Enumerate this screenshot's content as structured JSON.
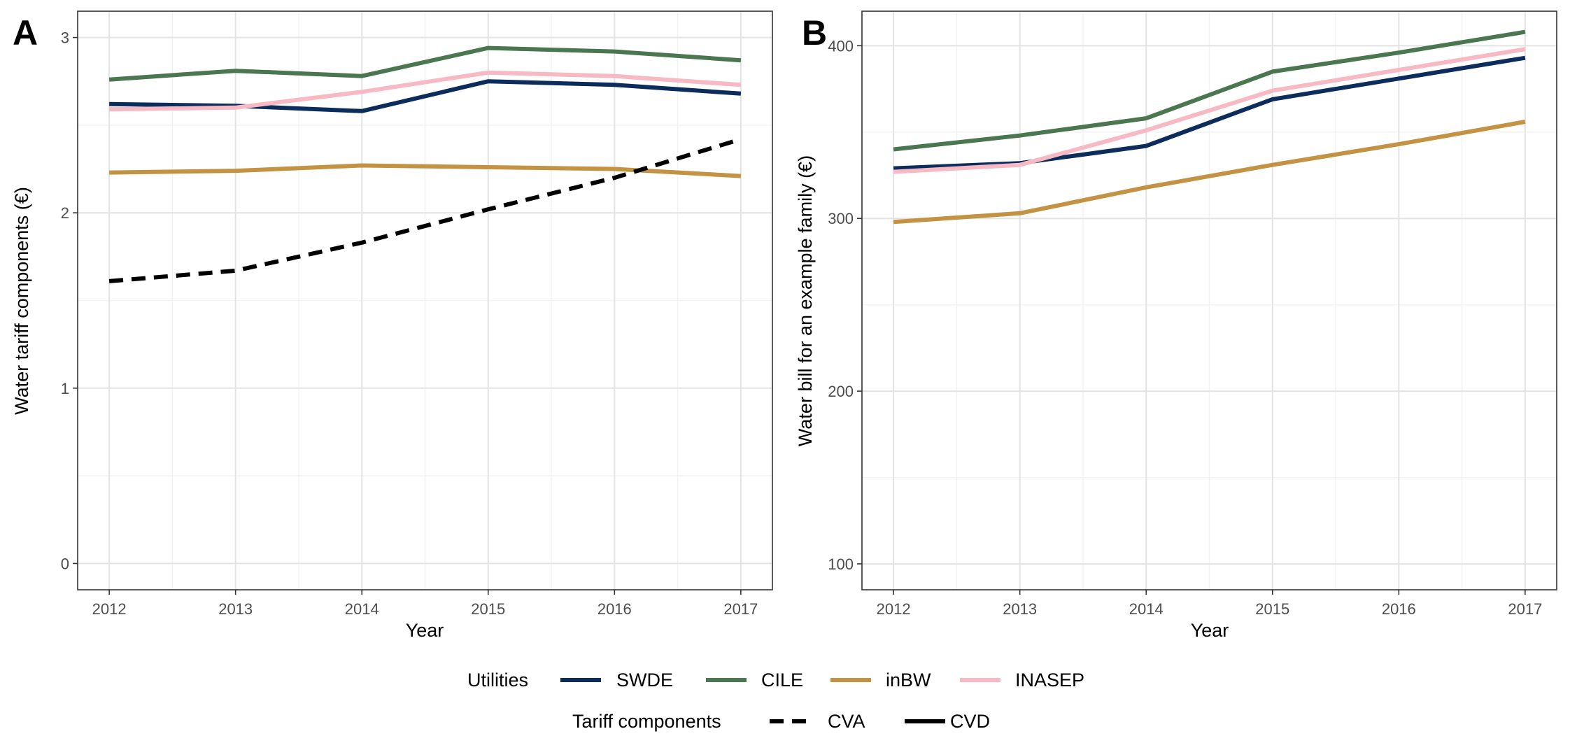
{
  "colors": {
    "SWDE": "#0c2d5c",
    "CILE": "#4a7650",
    "inBW": "#c39343",
    "INASEP": "#f7b9c4",
    "tariff": "#000000",
    "grid_major": "#e3e3e3",
    "grid_minor": "#f2f2f2",
    "panel_border": "#333333"
  },
  "legend": {
    "utilities_title": "Utilities",
    "utilities": [
      {
        "label": "SWDE",
        "color_key": "SWDE"
      },
      {
        "label": "CILE",
        "color_key": "CILE"
      },
      {
        "label": "inBW",
        "color_key": "inBW"
      },
      {
        "label": "INASEP",
        "color_key": "INASEP"
      }
    ],
    "tariff_title": "Tariff components",
    "tariff": [
      {
        "label": "CVA",
        "dash": "dashed"
      },
      {
        "label": "CVD",
        "dash": "solid"
      }
    ]
  },
  "chart_data": [
    {
      "panel_tag": "A",
      "type": "line",
      "xlabel": "Year",
      "ylabel": "Water tariff components (€)",
      "x": [
        2012,
        2013,
        2014,
        2015,
        2016,
        2017
      ],
      "xlim": [
        2011.75,
        2017.25
      ],
      "ylim": [
        -0.15,
        3.15
      ],
      "yticks": [
        0,
        1,
        2,
        3
      ],
      "xticks": [
        2012,
        2013,
        2014,
        2015,
        2016,
        2017
      ],
      "grid": true,
      "series": [
        {
          "name": "SWDE",
          "component": "CVD",
          "values": [
            2.62,
            2.61,
            2.58,
            2.75,
            2.73,
            2.68
          ]
        },
        {
          "name": "CILE",
          "component": "CVD",
          "values": [
            2.76,
            2.81,
            2.78,
            2.94,
            2.92,
            2.87
          ]
        },
        {
          "name": "inBW",
          "component": "CVD",
          "values": [
            2.23,
            2.24,
            2.27,
            2.26,
            2.25,
            2.21
          ]
        },
        {
          "name": "INASEP",
          "component": "CVD",
          "values": [
            2.59,
            2.6,
            2.69,
            2.8,
            2.78,
            2.73
          ]
        },
        {
          "name": "CVA",
          "component": "CVA",
          "values": [
            1.61,
            1.67,
            1.83,
            2.02,
            2.2,
            2.42
          ]
        }
      ]
    },
    {
      "panel_tag": "B",
      "type": "line",
      "xlabel": "Year",
      "ylabel": "Water bill for an example family (€)",
      "x": [
        2012,
        2013,
        2014,
        2015,
        2016,
        2017
      ],
      "xlim": [
        2011.75,
        2017.25
      ],
      "ylim": [
        85,
        420
      ],
      "yticks": [
        100,
        200,
        300,
        400
      ],
      "xticks": [
        2012,
        2013,
        2014,
        2015,
        2016,
        2017
      ],
      "grid": true,
      "series": [
        {
          "name": "SWDE",
          "values": [
            329,
            332,
            342,
            369,
            381,
            393
          ]
        },
        {
          "name": "CILE",
          "values": [
            340,
            348,
            358,
            385,
            396,
            408
          ]
        },
        {
          "name": "inBW",
          "values": [
            298,
            303,
            318,
            331,
            343,
            356
          ]
        },
        {
          "name": "INASEP",
          "values": [
            327,
            331,
            351,
            374,
            386,
            398
          ]
        }
      ]
    }
  ]
}
